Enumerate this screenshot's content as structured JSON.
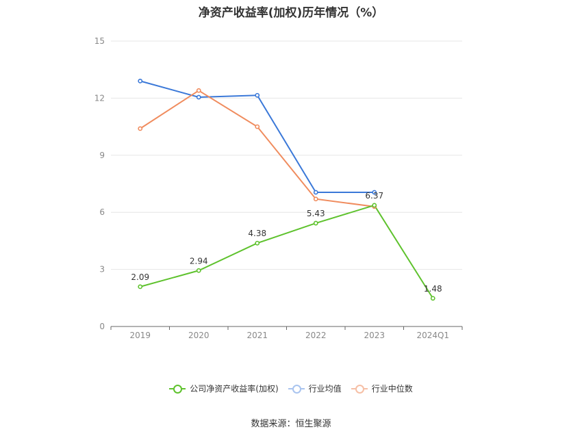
{
  "chart_data": {
    "type": "line",
    "title": "净资产收益率(加权)历年情况（%）",
    "categories": [
      "2019",
      "2020",
      "2021",
      "2022",
      "2023",
      "2024Q1"
    ],
    "ylim": [
      0,
      15
    ],
    "yticks": [
      0,
      3,
      6,
      9,
      12,
      15
    ],
    "grid": true,
    "legend_position": "bottom",
    "series": [
      {
        "name": "公司净资产收益率(加权)",
        "color": "#5ec22d",
        "show_labels": true,
        "values": [
          2.09,
          2.94,
          4.38,
          5.43,
          6.37,
          1.48
        ]
      },
      {
        "name": "行业均值",
        "color": "#3a78d8",
        "show_labels": false,
        "values": [
          12.9,
          12.05,
          12.15,
          7.05,
          7.05,
          null
        ]
      },
      {
        "name": "行业中位数",
        "color": "#f08c5e",
        "show_labels": false,
        "values": [
          10.4,
          12.4,
          10.5,
          6.7,
          6.3,
          null
        ]
      }
    ]
  },
  "source_text": "数据来源：恒生聚源"
}
